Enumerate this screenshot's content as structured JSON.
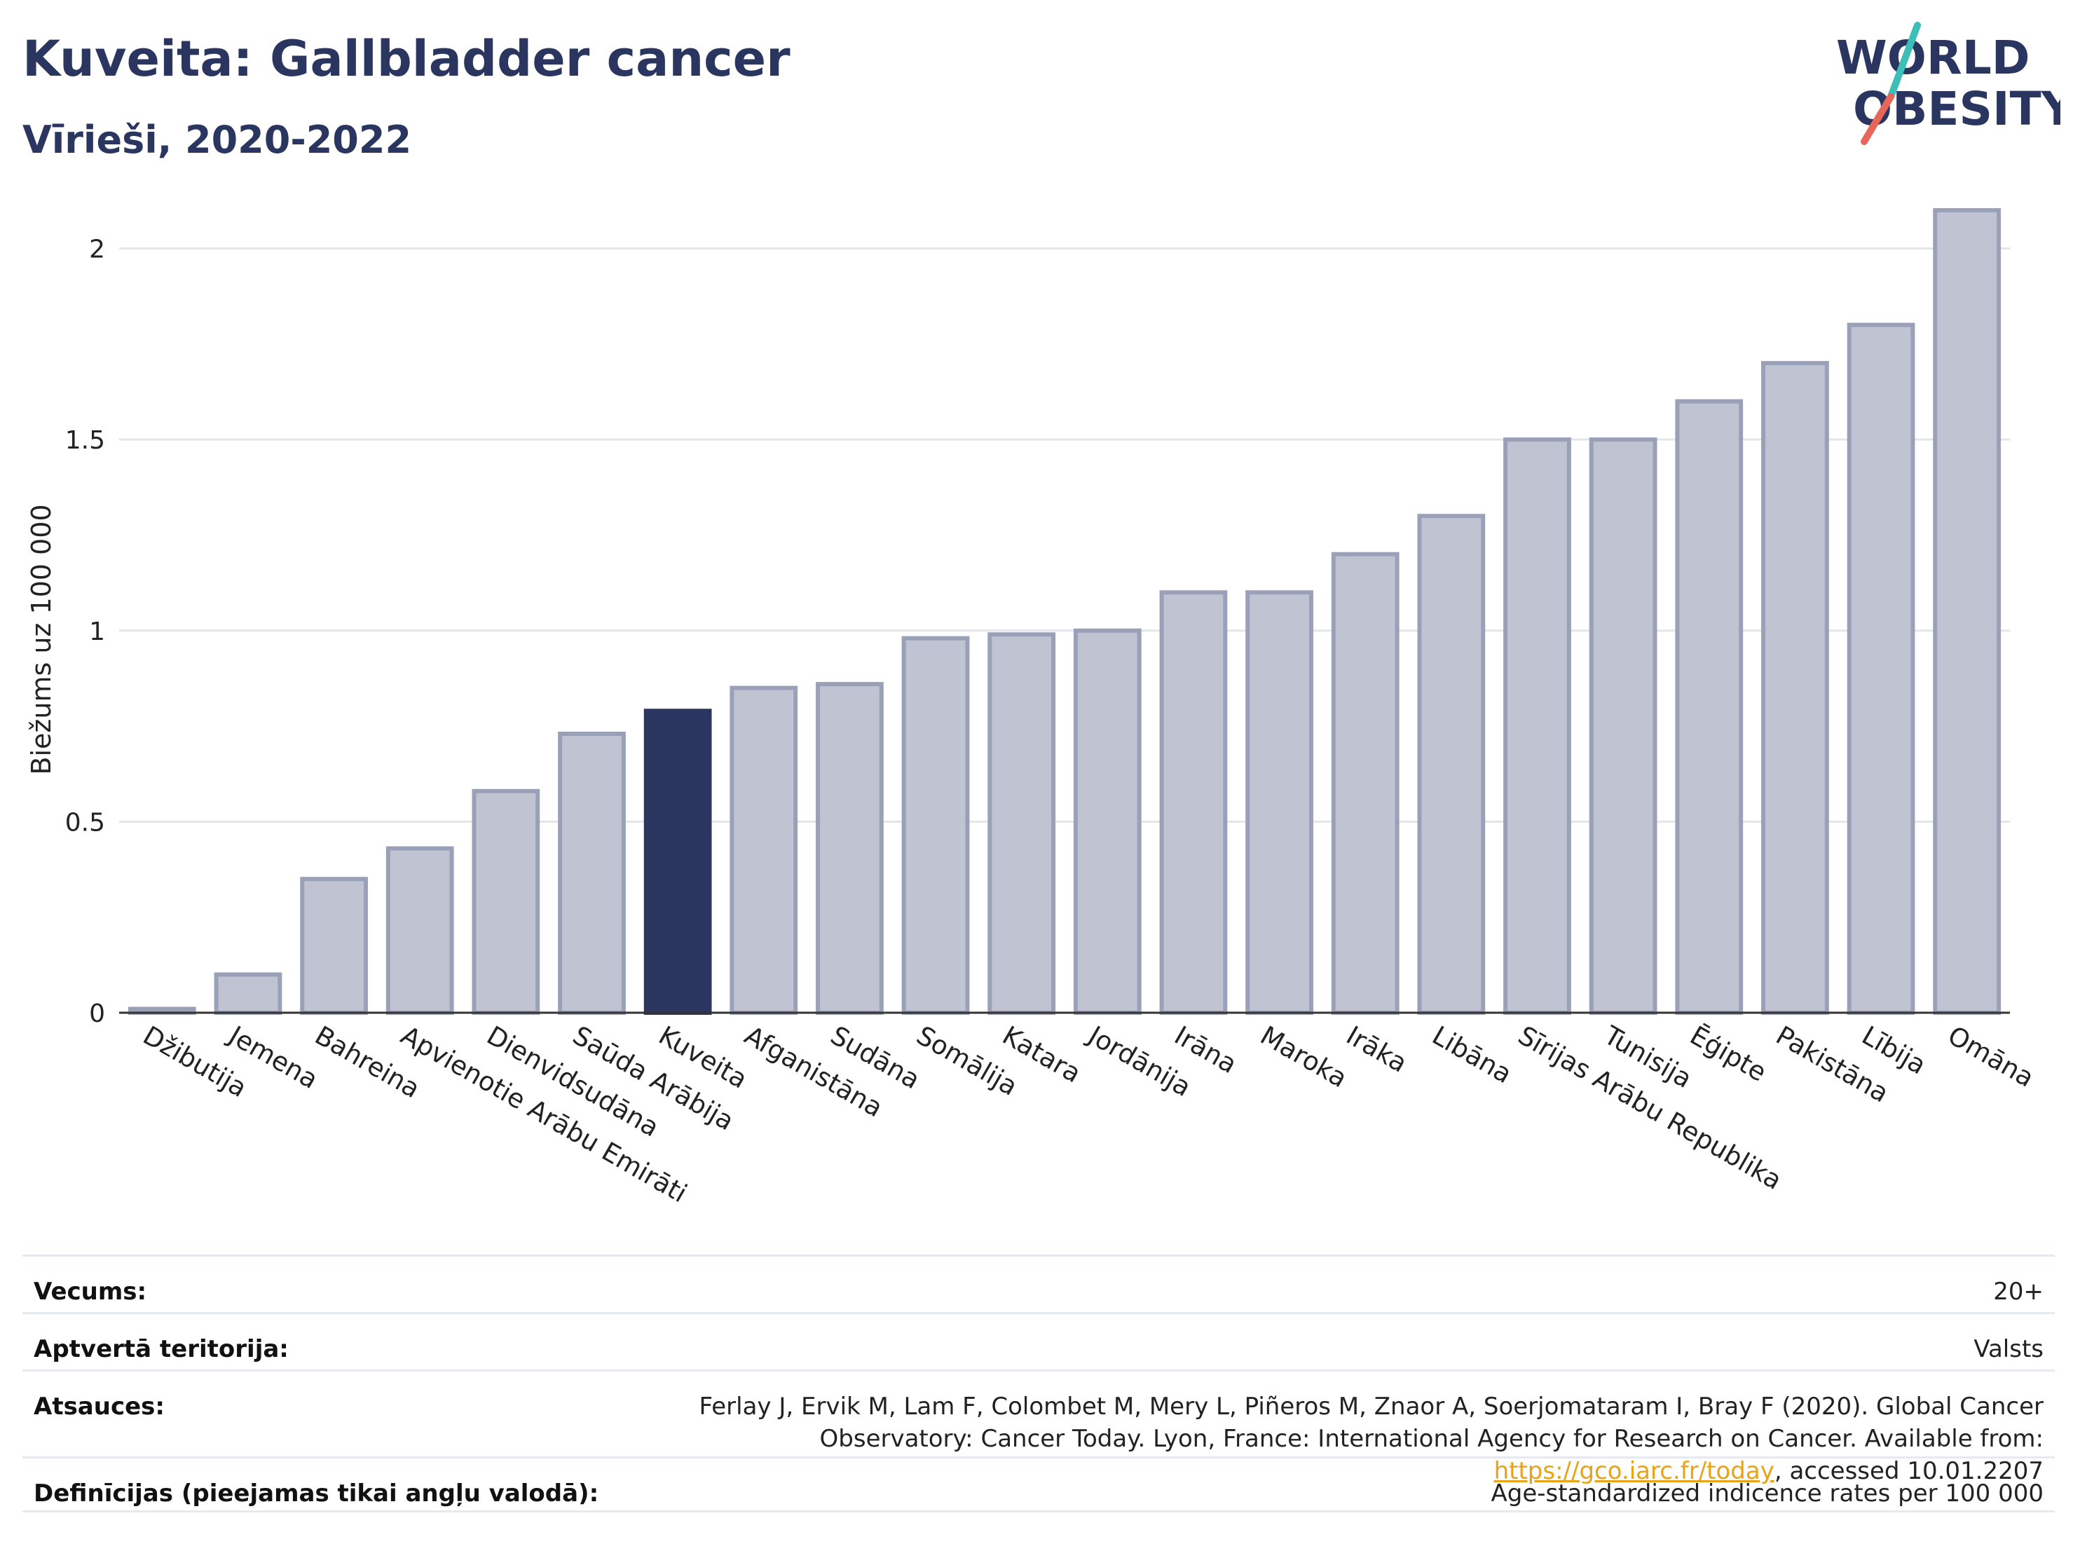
{
  "header": {
    "title": "Kuveita: Gallbladder cancer",
    "subtitle": "Vīrieši, 2020-2022"
  },
  "logo": {
    "line1": "WORLD",
    "line2": "OBESITY",
    "accent_teal": "#3dbfb8",
    "accent_red": "#e8655a"
  },
  "colors": {
    "bar_default": "#c0c4d2",
    "bar_default_stroke": "#9aa0b8",
    "bar_highlight": "#2b3660",
    "title": "#2b3660",
    "grid": "#e3e5ec"
  },
  "chart_data": {
    "type": "bar",
    "title": "Kuveita: Gallbladder cancer",
    "subtitle": "Vīrieši, 2020-2022",
    "ylabel": "Biežums uz 100 000",
    "xlabel": "",
    "ylim": [
      0,
      2.1
    ],
    "yticks": [
      0,
      0.5,
      1,
      1.5,
      2
    ],
    "ytick_labels": [
      "0",
      "0.5",
      "1",
      "1.5",
      "2"
    ],
    "grid": true,
    "highlight": "Kuveita",
    "categories": [
      "Džibutija",
      "Jemena",
      "Bahreina",
      "Apvienotie Arābu Emirāti",
      "Dienvidsudāna",
      "Saūda Arābija",
      "Kuveita",
      "Afganistāna",
      "Sudāna",
      "Somālija",
      "Katara",
      "Jordānija",
      "Irāna",
      "Maroka",
      "Irāka",
      "Libāna",
      "Sīrijas Arābu Republika",
      "Tunisija",
      "Ēģipte",
      "Pakistāna",
      "Lībija",
      "Omāna"
    ],
    "values": [
      0.01,
      0.1,
      0.35,
      0.43,
      0.58,
      0.73,
      0.79,
      0.85,
      0.86,
      0.98,
      0.99,
      1.0,
      1.1,
      1.1,
      1.2,
      1.3,
      1.5,
      1.5,
      1.6,
      1.7,
      1.8,
      2.1
    ]
  },
  "meta": {
    "age_label": "Vecums:",
    "age_value": "20+",
    "coverage_label": "Aptvertā teritorija:",
    "coverage_value": "Valsts",
    "refs_label": "Atsauces:",
    "refs_text_1": "Ferlay J, Ervik M, Lam F, Colombet M, Mery L, Piñeros M, Znaor A, Soerjomataram I, Bray F (2020). Global Cancer Observatory: Cancer Today. Lyon, France: International Agency for Research on Cancer. Available from: ",
    "refs_link": "https://gco.iarc.fr/today",
    "refs_text_2": ", accessed 10.01.2207",
    "defs_label": "Definīcijas (pieejamas tikai angļu valodā):",
    "defs_value": "Age-standardized indicence rates per 100 000"
  }
}
